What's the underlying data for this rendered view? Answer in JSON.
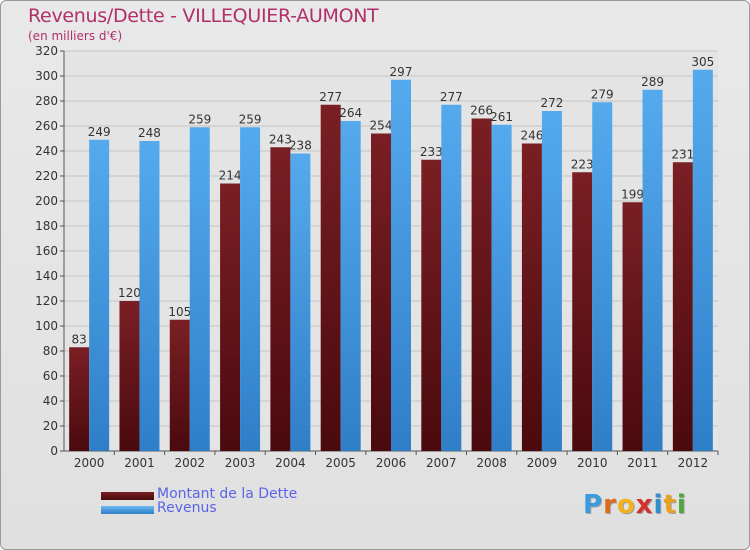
{
  "header": {
    "title": "Revenus/Dette - VILLEQUIER-AUMONT",
    "subtitle": "(en milliers d'€)"
  },
  "legend": {
    "debt_label": "Montant de la Dette",
    "revenue_label": "Revenus"
  },
  "logo": {
    "letters": [
      "P",
      "r",
      "o",
      "x",
      "i",
      "t",
      "i"
    ],
    "colors": [
      "#3a9be0",
      "#e06a1c",
      "#f2b21a",
      "#d2322d",
      "#2e8fd0",
      "#e8a21c",
      "#4aa83c"
    ]
  },
  "colors": {
    "debt": "#7a1f24",
    "debt_dark": "#4a0a0e",
    "revenue": "#55aaee",
    "revenue_dark": "#2f7fc8"
  },
  "chart_data": {
    "type": "bar",
    "title": "Revenus/Dette - VILLEQUIER-AUMONT",
    "subtitle": "(en milliers d'€)",
    "xlabel": "",
    "ylabel": "",
    "ylim": [
      0,
      320
    ],
    "ytick_step": 20,
    "grid": true,
    "legend_position": "bottom-left",
    "categories": [
      "2000",
      "2001",
      "2002",
      "2003",
      "2004",
      "2005",
      "2006",
      "2007",
      "2008",
      "2009",
      "2010",
      "2011",
      "2012"
    ],
    "series": [
      {
        "name": "Montant de la Dette",
        "values": [
          83,
          120,
          105,
          214,
          243,
          277,
          254,
          233,
          266,
          246,
          223,
          199,
          231
        ]
      },
      {
        "name": "Revenus",
        "values": [
          249,
          248,
          259,
          259,
          238,
          264,
          297,
          277,
          261,
          272,
          279,
          289,
          305
        ]
      }
    ]
  }
}
